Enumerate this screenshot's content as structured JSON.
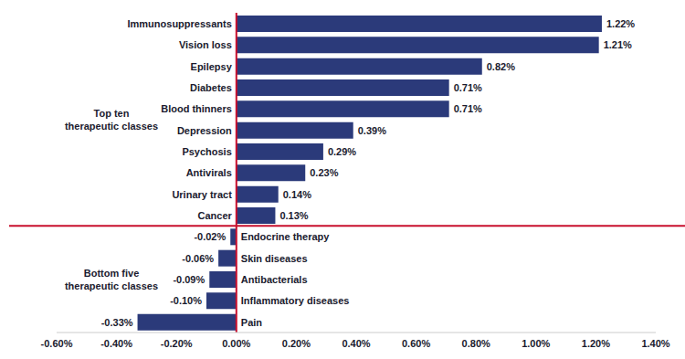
{
  "chart_data": {
    "type": "bar",
    "orientation": "horizontal",
    "categories": [
      "Immunosuppressants",
      "Vision loss",
      "Epilepsy",
      "Diabetes",
      "Blood thinners",
      "Depression",
      "Psychosis",
      "Antivirals",
      "Urinary tract",
      "Cancer",
      "Endocrine therapy",
      "Skin diseases",
      "Antibacterials",
      "Inflammatory diseases",
      "Pain"
    ],
    "values": [
      1.22,
      1.21,
      0.82,
      0.71,
      0.71,
      0.39,
      0.29,
      0.23,
      0.14,
      0.13,
      -0.02,
      -0.06,
      -0.09,
      -0.1,
      -0.33
    ],
    "value_labels": [
      "1.22%",
      "1.21%",
      "0.82%",
      "0.71%",
      "0.71%",
      "0.39%",
      "0.29%",
      "0.23%",
      "0.14%",
      "0.13%",
      "-0.02%",
      "-0.06%",
      "-0.09%",
      "-0.10%",
      "-0.33%"
    ],
    "data_labels": true,
    "color": "#2b3a7a",
    "xlim": [
      -0.6,
      1.4
    ],
    "xticks": [
      {
        "value": -0.6,
        "label": "-0.60%"
      },
      {
        "value": -0.4,
        "label": "-0.40%"
      },
      {
        "value": -0.2,
        "label": "-0.20%"
      },
      {
        "value": 0,
        "label": "0.00%"
      },
      {
        "value": 0.2,
        "label": "0.20%"
      },
      {
        "value": 0.4,
        "label": "0.40%"
      },
      {
        "value": 0.6,
        "label": "0.60%"
      },
      {
        "value": 0.8,
        "label": "0.80%"
      },
      {
        "value": 1,
        "label": "1.00%"
      },
      {
        "value": 1.2,
        "label": "1.20%"
      },
      {
        "value": 1.4,
        "label": "1.40%"
      }
    ],
    "grid": false,
    "groups": [
      {
        "label": "Top ten therapeutic classes",
        "size": 10
      },
      {
        "label": "Bottom five therapeutic classes",
        "size": 5
      }
    ]
  }
}
